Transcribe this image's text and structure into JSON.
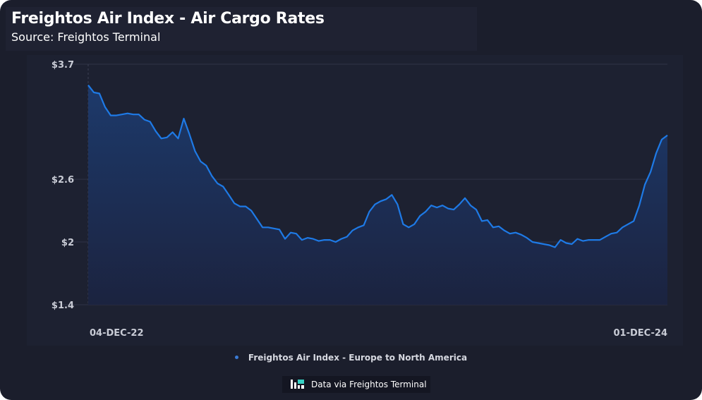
{
  "header": {
    "title": "Freightos Air Index - Air Cargo Rates",
    "subtitle": "Source: Freightos Terminal"
  },
  "credit": {
    "text": "Data via Freightos Terminal",
    "icon": "freightos-logo-icon"
  },
  "colors": {
    "line": "#1e7ae6",
    "area_top": "#1d3b6e",
    "area_bottom": "#1b2340",
    "grid": "#2f3446",
    "background": "#1b1e2c"
  },
  "chart_data": {
    "type": "area",
    "title": "Freightos Air Index - Air Cargo Rates",
    "subtitle": "Source: Freightos Terminal",
    "xlabel": "",
    "ylabel": "",
    "x_tick_labels": [
      "04-DEC-22",
      "01-DEC-24"
    ],
    "y_ticks": [
      1.4,
      2,
      2.6,
      3.7
    ],
    "y_tick_labels": [
      "$1.4",
      "$2",
      "$2.6",
      "$3.7"
    ],
    "ylim": [
      1.4,
      3.7
    ],
    "grid": true,
    "legend_position": "bottom",
    "series": [
      {
        "name": "Freightos Air Index - Europe to North America",
        "values": [
          3.5,
          3.43,
          3.42,
          3.29,
          3.21,
          3.21,
          3.22,
          3.23,
          3.22,
          3.22,
          3.17,
          3.15,
          3.06,
          2.99,
          3.0,
          3.05,
          2.99,
          3.18,
          3.03,
          2.87,
          2.77,
          2.73,
          2.63,
          2.56,
          2.53,
          2.45,
          2.37,
          2.34,
          2.34,
          2.3,
          2.22,
          2.14,
          2.14,
          2.13,
          2.12,
          2.03,
          2.09,
          2.08,
          2.02,
          2.04,
          2.03,
          2.01,
          2.02,
          2.02,
          2.0,
          2.03,
          2.05,
          2.11,
          2.14,
          2.16,
          2.29,
          2.36,
          2.39,
          2.41,
          2.45,
          2.36,
          2.17,
          2.14,
          2.17,
          2.25,
          2.29,
          2.35,
          2.33,
          2.35,
          2.32,
          2.31,
          2.36,
          2.42,
          2.35,
          2.31,
          2.2,
          2.21,
          2.14,
          2.15,
          2.11,
          2.08,
          2.09,
          2.07,
          2.04,
          2.0,
          1.99,
          1.98,
          1.97,
          1.95,
          2.02,
          1.99,
          1.98,
          2.03,
          2.01,
          2.02,
          2.02,
          2.02,
          2.05,
          2.08,
          2.09,
          2.14,
          2.17,
          2.2,
          2.35,
          2.55,
          2.67,
          2.85,
          2.98,
          3.02
        ]
      }
    ]
  }
}
